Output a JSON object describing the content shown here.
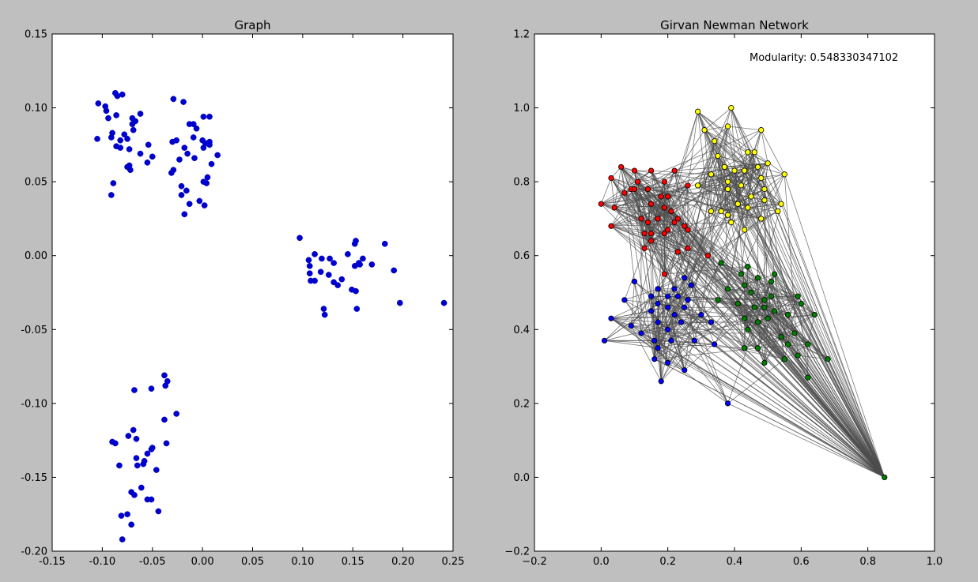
{
  "chart_data": [
    {
      "type": "scatter",
      "title": "Graph",
      "xlim": [
        -0.15,
        0.25
      ],
      "ylim": [
        -0.2,
        0.15
      ],
      "xticks": [
        "-0.15",
        "-0.10",
        "-0.05",
        "0.00",
        "0.05",
        "0.10",
        "0.15",
        "0.20",
        "0.25"
      ],
      "yticks": [
        "-0.20",
        "-0.15",
        "-0.10",
        "-0.05",
        "0.00",
        "0.05",
        "0.10",
        "0.15"
      ],
      "grid": false,
      "color": "#0000cc",
      "points": [
        [
          -0.104,
          0.103
        ],
        [
          -0.097,
          0.101
        ],
        [
          -0.096,
          0.098
        ],
        [
          -0.094,
          0.093
        ],
        [
          -0.105,
          0.079
        ],
        [
          -0.091,
          0.08
        ],
        [
          -0.09,
          0.083
        ],
        [
          -0.087,
          0.11
        ],
        [
          -0.085,
          0.108
        ],
        [
          -0.08,
          0.109
        ],
        [
          -0.086,
          0.095
        ],
        [
          -0.082,
          0.078
        ],
        [
          -0.086,
          0.074
        ],
        [
          -0.082,
          0.073
        ],
        [
          -0.078,
          0.082
        ],
        [
          -0.075,
          0.079
        ],
        [
          -0.073,
          0.072
        ],
        [
          -0.07,
          0.093
        ],
        [
          -0.07,
          0.089
        ],
        [
          -0.069,
          0.085
        ],
        [
          -0.062,
          0.096
        ],
        [
          -0.062,
          0.069
        ],
        [
          -0.054,
          0.075
        ],
        [
          -0.05,
          0.067
        ],
        [
          -0.055,
          0.063
        ],
        [
          -0.075,
          0.06
        ],
        [
          -0.073,
          0.061
        ],
        [
          -0.072,
          0.058
        ],
        [
          -0.089,
          0.049
        ],
        [
          -0.091,
          0.041
        ],
        [
          -0.067,
          0.091
        ],
        [
          -0.029,
          0.106
        ],
        [
          -0.019,
          0.104
        ],
        [
          -0.03,
          0.077
        ],
        [
          -0.026,
          0.078
        ],
        [
          -0.015,
          0.069
        ],
        [
          -0.018,
          0.073
        ],
        [
          -0.013,
          0.089
        ],
        [
          -0.009,
          0.089
        ],
        [
          -0.006,
          0.086
        ],
        [
          0.001,
          0.094
        ],
        [
          0.007,
          0.094
        ],
        [
          -0.009,
          0.08
        ],
        [
          0.0,
          0.078
        ],
        [
          0.003,
          0.076
        ],
        [
          0.007,
          0.077
        ],
        [
          0.007,
          0.075
        ],
        [
          0.001,
          0.073
        ],
        [
          -0.023,
          0.065
        ],
        [
          -0.008,
          0.066
        ],
        [
          0.015,
          0.068
        ],
        [
          0.009,
          0.062
        ],
        [
          -0.029,
          0.058
        ],
        [
          -0.031,
          0.056
        ],
        [
          0.005,
          0.053
        ],
        [
          0.001,
          0.05
        ],
        [
          0.004,
          0.049
        ],
        [
          -0.021,
          0.047
        ],
        [
          -0.016,
          0.044
        ],
        [
          -0.021,
          0.041
        ],
        [
          -0.003,
          0.037
        ],
        [
          -0.013,
          0.035
        ],
        [
          0.002,
          0.034
        ],
        [
          -0.018,
          0.028
        ],
        [
          0.097,
          0.012
        ],
        [
          0.106,
          -0.003
        ],
        [
          0.112,
          0.001
        ],
        [
          0.119,
          -0.002
        ],
        [
          0.127,
          -0.002
        ],
        [
          0.131,
          -0.005
        ],
        [
          0.107,
          -0.007
        ],
        [
          0.107,
          -0.012
        ],
        [
          0.118,
          -0.011
        ],
        [
          0.126,
          -0.013
        ],
        [
          0.108,
          -0.017
        ],
        [
          0.112,
          -0.017
        ],
        [
          0.131,
          -0.018
        ],
        [
          0.139,
          -0.016
        ],
        [
          0.135,
          -0.02
        ],
        [
          0.145,
          0.001
        ],
        [
          0.152,
          0.008
        ],
        [
          0.153,
          0.01
        ],
        [
          0.152,
          -0.007
        ],
        [
          0.156,
          -0.005
        ],
        [
          0.157,
          -0.006
        ],
        [
          0.16,
          -0.002
        ],
        [
          0.169,
          -0.006
        ],
        [
          0.182,
          0.008
        ],
        [
          0.191,
          -0.01
        ],
        [
          0.149,
          -0.023
        ],
        [
          0.153,
          -0.024
        ],
        [
          0.121,
          -0.036
        ],
        [
          0.122,
          -0.04
        ],
        [
          0.154,
          -0.036
        ],
        [
          0.197,
          -0.032
        ],
        [
          0.241,
          -0.032
        ],
        [
          -0.038,
          -0.081
        ],
        [
          -0.035,
          -0.085
        ],
        [
          -0.037,
          -0.088
        ],
        [
          -0.051,
          -0.09
        ],
        [
          -0.068,
          -0.091
        ],
        [
          -0.038,
          -0.111
        ],
        [
          -0.026,
          -0.107
        ],
        [
          -0.069,
          -0.118
        ],
        [
          -0.074,
          -0.122
        ],
        [
          -0.066,
          -0.124
        ],
        [
          -0.09,
          -0.126
        ],
        [
          -0.087,
          -0.127
        ],
        [
          -0.05,
          -0.13
        ],
        [
          -0.051,
          -0.131
        ],
        [
          -0.036,
          -0.127
        ],
        [
          -0.066,
          -0.137
        ],
        [
          -0.055,
          -0.134
        ],
        [
          -0.058,
          -0.139
        ],
        [
          -0.065,
          -0.142
        ],
        [
          -0.059,
          -0.141
        ],
        [
          -0.083,
          -0.142
        ],
        [
          -0.046,
          -0.145
        ],
        [
          -0.061,
          -0.157
        ],
        [
          -0.071,
          -0.16
        ],
        [
          -0.068,
          -0.162
        ],
        [
          -0.055,
          -0.165
        ],
        [
          -0.051,
          -0.165
        ],
        [
          -0.044,
          -0.173
        ],
        [
          -0.081,
          -0.176
        ],
        [
          -0.075,
          -0.175
        ],
        [
          -0.071,
          -0.182
        ],
        [
          -0.08,
          -0.192
        ]
      ]
    },
    {
      "type": "network",
      "title": "Girvan Newman Network",
      "annotation": "Modularity: 0.548330347102",
      "xlim": [
        -0.2,
        1.0
      ],
      "ylim": [
        -0.2,
        1.2
      ],
      "xticks": [
        "−0.2",
        "0.0",
        "0.2",
        "0.4",
        "0.6",
        "0.8",
        "1.0"
      ],
      "yticks": [
        "−0.2",
        "0.0",
        "0.2",
        "0.4",
        "0.6",
        "0.8",
        "1.0",
        "1.2"
      ],
      "grid": false,
      "edge_color": "#4d4d4d",
      "communities": [
        {
          "color": "#ffff00",
          "nodes": [
            [
              0.29,
              0.99
            ],
            [
              0.39,
              1.0
            ],
            [
              0.48,
              0.94
            ],
            [
              0.38,
              0.95
            ],
            [
              0.31,
              0.94
            ],
            [
              0.34,
              0.91
            ],
            [
              0.35,
              0.87
            ],
            [
              0.44,
              0.88
            ],
            [
              0.46,
              0.88
            ],
            [
              0.5,
              0.85
            ],
            [
              0.47,
              0.84
            ],
            [
              0.37,
              0.84
            ],
            [
              0.4,
              0.83
            ],
            [
              0.43,
              0.83
            ],
            [
              0.55,
              0.82
            ],
            [
              0.33,
              0.82
            ],
            [
              0.48,
              0.81
            ],
            [
              0.38,
              0.8
            ],
            [
              0.42,
              0.79
            ],
            [
              0.29,
              0.79
            ],
            [
              0.38,
              0.78
            ],
            [
              0.49,
              0.78
            ],
            [
              0.45,
              0.76
            ],
            [
              0.41,
              0.74
            ],
            [
              0.54,
              0.74
            ],
            [
              0.49,
              0.75
            ],
            [
              0.44,
              0.73
            ],
            [
              0.36,
              0.72
            ],
            [
              0.33,
              0.72
            ],
            [
              0.38,
              0.71
            ],
            [
              0.53,
              0.72
            ],
            [
              0.48,
              0.7
            ],
            [
              0.39,
              0.69
            ],
            [
              0.43,
              0.67
            ]
          ]
        },
        {
          "color": "#ff0000",
          "nodes": [
            [
              0.06,
              0.84
            ],
            [
              0.1,
              0.83
            ],
            [
              0.15,
              0.83
            ],
            [
              0.22,
              0.83
            ],
            [
              0.03,
              0.81
            ],
            [
              0.11,
              0.8
            ],
            [
              0.19,
              0.8
            ],
            [
              0.09,
              0.78
            ],
            [
              0.1,
              0.78
            ],
            [
              0.14,
              0.78
            ],
            [
              0.26,
              0.79
            ],
            [
              0.07,
              0.77
            ],
            [
              0.18,
              0.76
            ],
            [
              0.2,
              0.76
            ],
            [
              0.15,
              0.74
            ],
            [
              0.0,
              0.74
            ],
            [
              0.04,
              0.73
            ],
            [
              0.19,
              0.73
            ],
            [
              0.21,
              0.72
            ],
            [
              0.12,
              0.7
            ],
            [
              0.17,
              0.7
            ],
            [
              0.23,
              0.7
            ],
            [
              0.14,
              0.69
            ],
            [
              0.22,
              0.69
            ],
            [
              0.25,
              0.68
            ],
            [
              0.03,
              0.68
            ],
            [
              0.2,
              0.67
            ],
            [
              0.26,
              0.67
            ],
            [
              0.13,
              0.66
            ],
            [
              0.15,
              0.66
            ],
            [
              0.19,
              0.66
            ],
            [
              0.15,
              0.64
            ],
            [
              0.13,
              0.62
            ],
            [
              0.23,
              0.61
            ],
            [
              0.26,
              0.62
            ],
            [
              0.32,
              0.6
            ],
            [
              0.19,
              0.55
            ]
          ]
        },
        {
          "color": "#0000ff",
          "nodes": [
            [
              0.1,
              0.53
            ],
            [
              0.17,
              0.51
            ],
            [
              0.25,
              0.54
            ],
            [
              0.27,
              0.52
            ],
            [
              0.22,
              0.51
            ],
            [
              0.15,
              0.49
            ],
            [
              0.2,
              0.49
            ],
            [
              0.23,
              0.49
            ],
            [
              0.07,
              0.48
            ],
            [
              0.26,
              0.48
            ],
            [
              0.17,
              0.47
            ],
            [
              0.2,
              0.46
            ],
            [
              0.25,
              0.46
            ],
            [
              0.15,
              0.45
            ],
            [
              0.22,
              0.44
            ],
            [
              0.3,
              0.44
            ],
            [
              0.09,
              0.41
            ],
            [
              0.17,
              0.42
            ],
            [
              0.24,
              0.42
            ],
            [
              0.33,
              0.42
            ],
            [
              0.2,
              0.4
            ],
            [
              0.12,
              0.39
            ],
            [
              0.16,
              0.37
            ],
            [
              0.21,
              0.37
            ],
            [
              0.28,
              0.37
            ],
            [
              0.34,
              0.36
            ],
            [
              0.01,
              0.37
            ],
            [
              0.03,
              0.43
            ],
            [
              0.17,
              0.35
            ],
            [
              0.2,
              0.31
            ],
            [
              0.16,
              0.32
            ],
            [
              0.25,
              0.29
            ],
            [
              0.18,
              0.26
            ],
            [
              0.38,
              0.2
            ]
          ]
        },
        {
          "color": "#008000",
          "nodes": [
            [
              0.36,
              0.58
            ],
            [
              0.44,
              0.57
            ],
            [
              0.52,
              0.55
            ],
            [
              0.42,
              0.55
            ],
            [
              0.47,
              0.54
            ],
            [
              0.51,
              0.53
            ],
            [
              0.43,
              0.52
            ],
            [
              0.38,
              0.51
            ],
            [
              0.45,
              0.5
            ],
            [
              0.51,
              0.49
            ],
            [
              0.35,
              0.48
            ],
            [
              0.49,
              0.48
            ],
            [
              0.59,
              0.49
            ],
            [
              0.41,
              0.47
            ],
            [
              0.46,
              0.46
            ],
            [
              0.49,
              0.46
            ],
            [
              0.52,
              0.45
            ],
            [
              0.56,
              0.44
            ],
            [
              0.43,
              0.43
            ],
            [
              0.5,
              0.43
            ],
            [
              0.6,
              0.47
            ],
            [
              0.64,
              0.44
            ],
            [
              0.47,
              0.42
            ],
            [
              0.44,
              0.4
            ],
            [
              0.58,
              0.39
            ],
            [
              0.54,
              0.38
            ],
            [
              0.56,
              0.36
            ],
            [
              0.62,
              0.36
            ],
            [
              0.43,
              0.35
            ],
            [
              0.47,
              0.35
            ],
            [
              0.55,
              0.32
            ],
            [
              0.59,
              0.33
            ],
            [
              0.68,
              0.32
            ],
            [
              0.49,
              0.31
            ],
            [
              0.62,
              0.27
            ],
            [
              0.85,
              0.0
            ]
          ]
        }
      ]
    }
  ]
}
